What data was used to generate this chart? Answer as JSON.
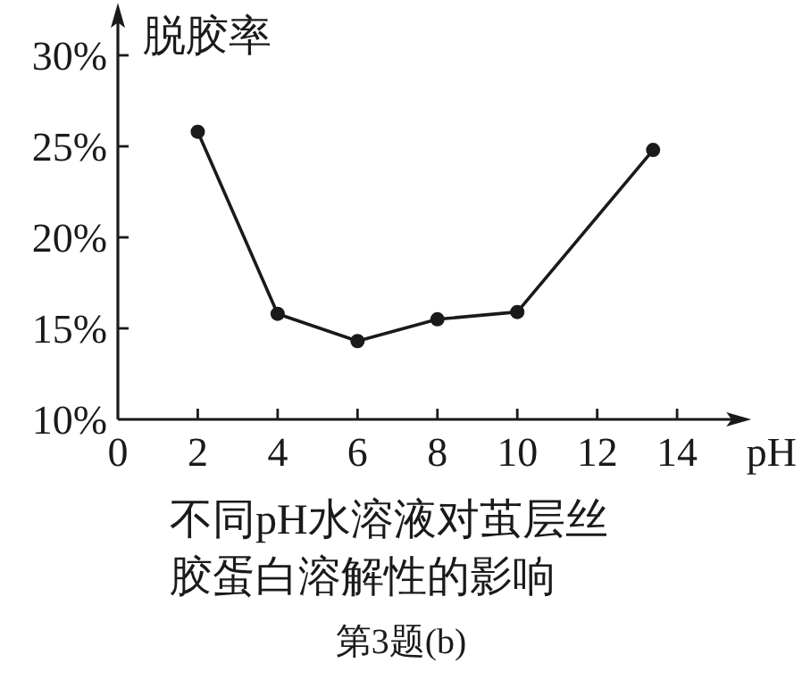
{
  "chart_data": {
    "type": "line",
    "title": "不同pH水溶液对茧层丝胶蛋白溶解性的影响",
    "xlabel": "pH",
    "ylabel": "脱胶率",
    "annotations": [
      "第3题(b)"
    ],
    "series": [
      {
        "color": "#1a1a1a",
        "x": [
          2,
          4,
          6,
          8,
          10,
          13.4
        ],
        "values": [
          25.8,
          15.8,
          14.3,
          15.5,
          15.9,
          24.8
        ]
      }
    ],
    "xlim": [
      0,
      15.5
    ],
    "xticks": [
      0,
      2,
      4,
      6,
      8,
      10,
      12,
      14
    ],
    "ylim": [
      10,
      32
    ],
    "yticks": [
      {
        "value": 10,
        "label": "10%"
      },
      {
        "value": 15,
        "label": "15%"
      },
      {
        "value": 20,
        "label": "20%"
      },
      {
        "value": 25,
        "label": "25%"
      },
      {
        "value": 30,
        "label": "30%"
      }
    ],
    "marker": "circle",
    "line_style": "solid",
    "grid": false
  }
}
